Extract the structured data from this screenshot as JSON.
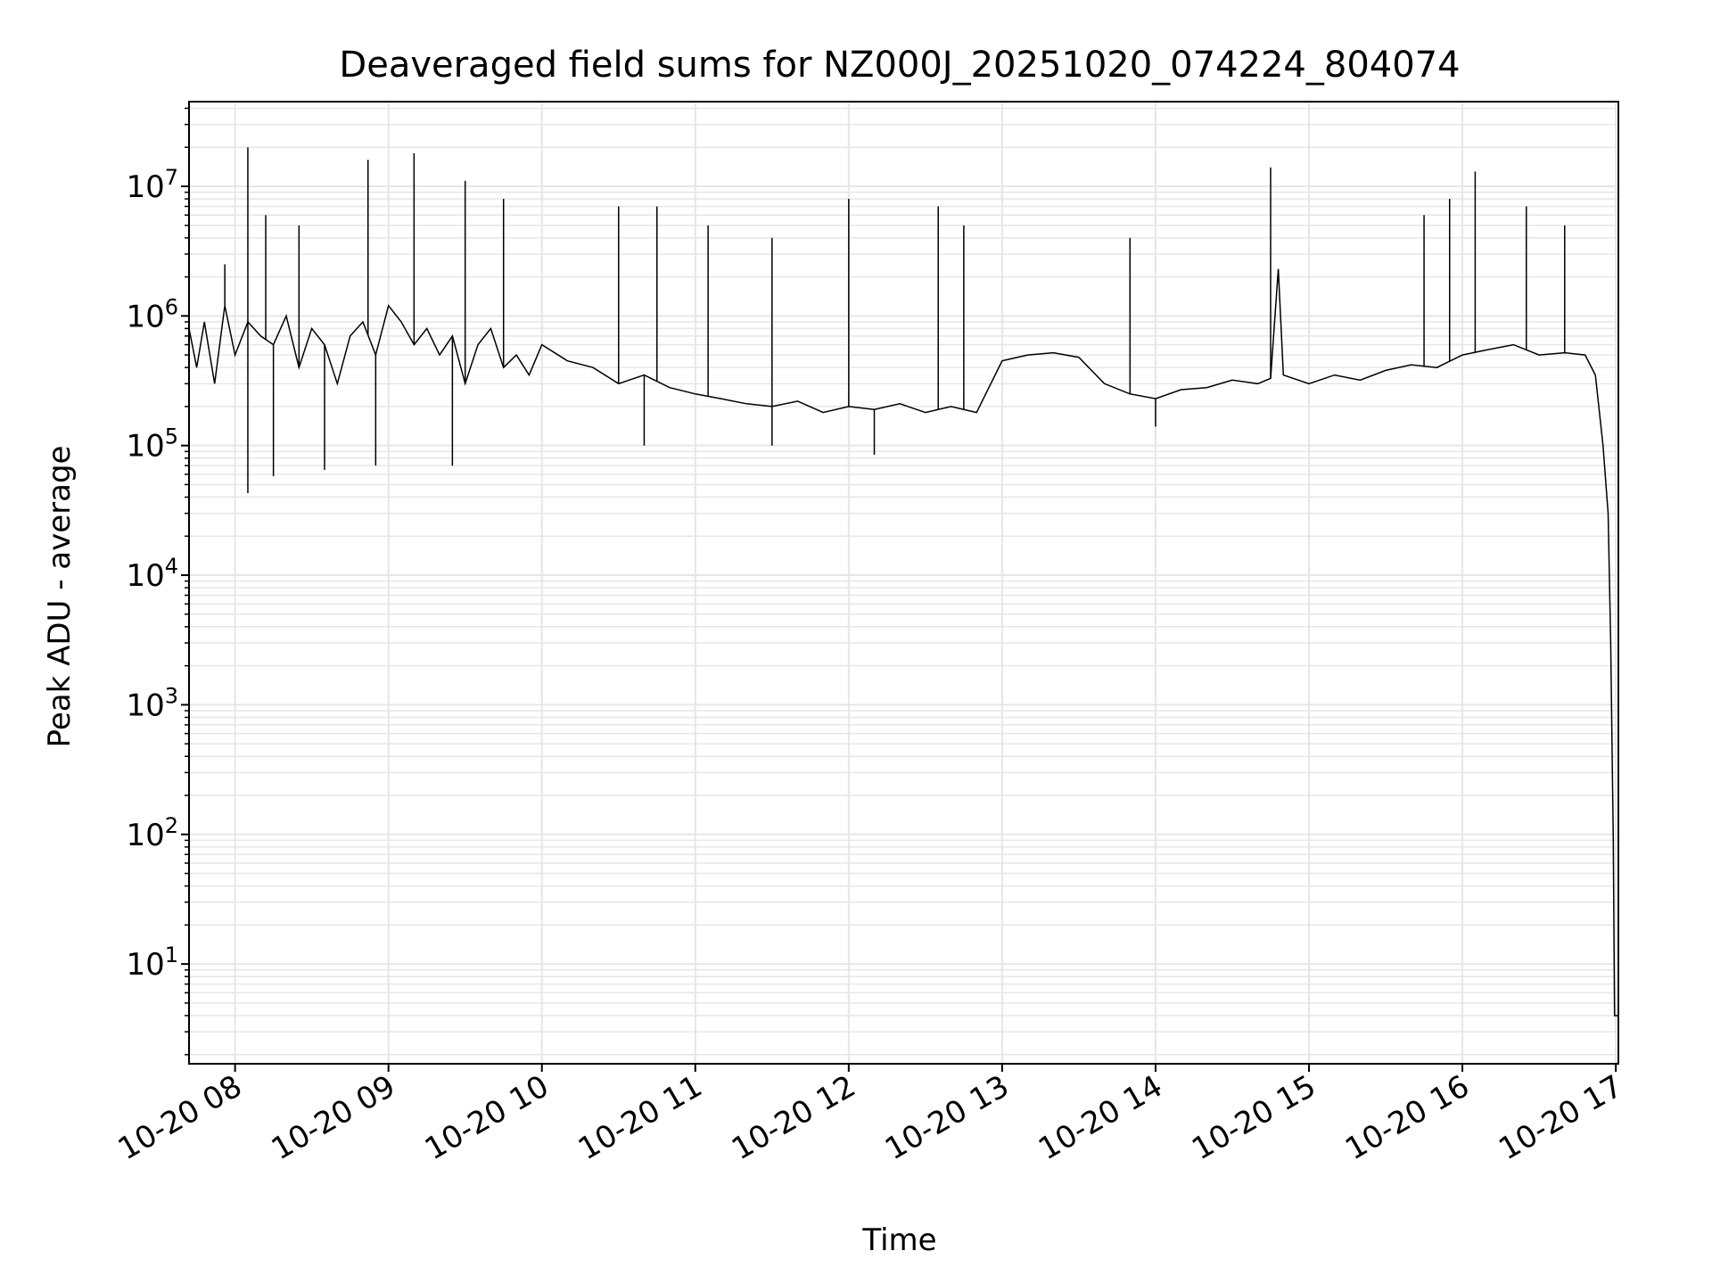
{
  "chart_data": {
    "type": "line",
    "title": "Deaveraged field sums for NZ000J_20251020_074224_804074",
    "xlabel": "Time",
    "ylabel": "Peak ADU - average",
    "y_scale": "log",
    "ylim": [
      1.7,
      45000000
    ],
    "xlim": [
      "2025-10-20 07:42",
      "2025-10-20 17:01"
    ],
    "grid": true,
    "legend": "none",
    "line_color": "#000000",
    "grid_color": "#e6e6e6",
    "x_ticks": [
      {
        "value": "2025-10-20 08:00",
        "label": "10-20 08"
      },
      {
        "value": "2025-10-20 09:00",
        "label": "10-20 09"
      },
      {
        "value": "2025-10-20 10:00",
        "label": "10-20 10"
      },
      {
        "value": "2025-10-20 11:00",
        "label": "10-20 11"
      },
      {
        "value": "2025-10-20 12:00",
        "label": "10-20 12"
      },
      {
        "value": "2025-10-20 13:00",
        "label": "10-20 13"
      },
      {
        "value": "2025-10-20 14:00",
        "label": "10-20 14"
      },
      {
        "value": "2025-10-20 15:00",
        "label": "10-20 15"
      },
      {
        "value": "2025-10-20 16:00",
        "label": "10-20 16"
      },
      {
        "value": "2025-10-20 17:00",
        "label": "10-20 17"
      }
    ],
    "y_ticks": [
      {
        "value": 10,
        "base": "10",
        "exp": "1"
      },
      {
        "value": 100,
        "base": "10",
        "exp": "2"
      },
      {
        "value": 1000,
        "base": "10",
        "exp": "3"
      },
      {
        "value": 10000,
        "base": "10",
        "exp": "4"
      },
      {
        "value": 100000,
        "base": "10",
        "exp": "5"
      },
      {
        "value": 1000000,
        "base": "10",
        "exp": "6"
      },
      {
        "value": 10000000,
        "base": "10",
        "exp": "7"
      }
    ],
    "series": [
      {
        "x": [
          "2025-10-20 07:42",
          "2025-10-20 07:45",
          "2025-10-20 07:48",
          "2025-10-20 07:52",
          "2025-10-20 07:56",
          "2025-10-20 08:00",
          "2025-10-20 08:05",
          "2025-10-20 08:10",
          "2025-10-20 08:15",
          "2025-10-20 08:20",
          "2025-10-20 08:25",
          "2025-10-20 08:30",
          "2025-10-20 08:35",
          "2025-10-20 08:40",
          "2025-10-20 08:45",
          "2025-10-20 08:50",
          "2025-10-20 08:55",
          "2025-10-20 09:00",
          "2025-10-20 09:05",
          "2025-10-20 09:10",
          "2025-10-20 09:15",
          "2025-10-20 09:20",
          "2025-10-20 09:25",
          "2025-10-20 09:30",
          "2025-10-20 09:35",
          "2025-10-20 09:40",
          "2025-10-20 09:45",
          "2025-10-20 09:50",
          "2025-10-20 09:55",
          "2025-10-20 10:00",
          "2025-10-20 10:10",
          "2025-10-20 10:20",
          "2025-10-20 10:30",
          "2025-10-20 10:40",
          "2025-10-20 10:50",
          "2025-10-20 11:00",
          "2025-10-20 11:10",
          "2025-10-20 11:20",
          "2025-10-20 11:30",
          "2025-10-20 11:40",
          "2025-10-20 11:50",
          "2025-10-20 12:00",
          "2025-10-20 12:10",
          "2025-10-20 12:20",
          "2025-10-20 12:30",
          "2025-10-20 12:40",
          "2025-10-20 12:50",
          "2025-10-20 13:00",
          "2025-10-20 13:10",
          "2025-10-20 13:20",
          "2025-10-20 13:30",
          "2025-10-20 13:40",
          "2025-10-20 13:50",
          "2025-10-20 14:00",
          "2025-10-20 14:10",
          "2025-10-20 14:20",
          "2025-10-20 14:30",
          "2025-10-20 14:40",
          "2025-10-20 14:45",
          "2025-10-20 14:48",
          "2025-10-20 14:50",
          "2025-10-20 15:00",
          "2025-10-20 15:10",
          "2025-10-20 15:20",
          "2025-10-20 15:30",
          "2025-10-20 15:40",
          "2025-10-20 15:50",
          "2025-10-20 16:00",
          "2025-10-20 16:10",
          "2025-10-20 16:20",
          "2025-10-20 16:30",
          "2025-10-20 16:40",
          "2025-10-20 16:48",
          "2025-10-20 16:52",
          "2025-10-20 16:55",
          "2025-10-20 16:57",
          "2025-10-20 16:58",
          "2025-10-20 16:59",
          "2025-10-20 16:59:30",
          "2025-10-20 17:00",
          "2025-10-20 17:00:30",
          "2025-10-20 17:01"
        ],
        "y": [
          800000,
          400000,
          900000,
          300000,
          1200000,
          500000,
          900000,
          700000,
          600000,
          1000000,
          400000,
          800000,
          600000,
          300000,
          700000,
          900000,
          500000,
          1200000,
          900000,
          600000,
          800000,
          500000,
          700000,
          300000,
          600000,
          800000,
          400000,
          500000,
          350000,
          600000,
          450000,
          400000,
          300000,
          350000,
          280000,
          250000,
          230000,
          210000,
          200000,
          220000,
          180000,
          200000,
          190000,
          210000,
          180000,
          200000,
          180000,
          450000,
          500000,
          520000,
          480000,
          300000,
          250000,
          230000,
          270000,
          280000,
          320000,
          300000,
          330000,
          2300000,
          350000,
          300000,
          350000,
          320000,
          380000,
          420000,
          400000,
          500000,
          550000,
          600000,
          500000,
          520000,
          500000,
          350000,
          100000,
          30000,
          3000,
          90,
          4,
          4,
          4,
          4
        ]
      }
    ],
    "spikes_top": [
      {
        "x": "2025-10-20 07:56",
        "y": 2500000
      },
      {
        "x": "2025-10-20 08:05",
        "y": 20000000
      },
      {
        "x": "2025-10-20 08:12",
        "y": 6000000
      },
      {
        "x": "2025-10-20 08:25",
        "y": 5000000
      },
      {
        "x": "2025-10-20 08:52",
        "y": 16000000
      },
      {
        "x": "2025-10-20 09:10",
        "y": 18000000
      },
      {
        "x": "2025-10-20 09:30",
        "y": 11000000
      },
      {
        "x": "2025-10-20 09:45",
        "y": 8000000
      },
      {
        "x": "2025-10-20 10:30",
        "y": 7000000
      },
      {
        "x": "2025-10-20 10:45",
        "y": 7000000
      },
      {
        "x": "2025-10-20 11:05",
        "y": 5000000
      },
      {
        "x": "2025-10-20 11:30",
        "y": 4000000
      },
      {
        "x": "2025-10-20 12:00",
        "y": 8000000
      },
      {
        "x": "2025-10-20 12:35",
        "y": 7000000
      },
      {
        "x": "2025-10-20 12:45",
        "y": 5000000
      },
      {
        "x": "2025-10-20 13:50",
        "y": 4000000
      },
      {
        "x": "2025-10-20 14:45",
        "y": 14000000
      },
      {
        "x": "2025-10-20 15:45",
        "y": 6000000
      },
      {
        "x": "2025-10-20 15:55",
        "y": 8000000
      },
      {
        "x": "2025-10-20 16:05",
        "y": 13000000
      },
      {
        "x": "2025-10-20 16:25",
        "y": 7000000
      },
      {
        "x": "2025-10-20 16:40",
        "y": 5000000
      }
    ],
    "spikes_bottom": [
      {
        "x": "2025-10-20 08:05",
        "y": 43000
      },
      {
        "x": "2025-10-20 08:15",
        "y": 58000
      },
      {
        "x": "2025-10-20 08:35",
        "y": 65000
      },
      {
        "x": "2025-10-20 08:55",
        "y": 70000
      },
      {
        "x": "2025-10-20 09:25",
        "y": 70000
      },
      {
        "x": "2025-10-20 10:40",
        "y": 100000
      },
      {
        "x": "2025-10-20 11:30",
        "y": 100000
      },
      {
        "x": "2025-10-20 12:10",
        "y": 85000
      },
      {
        "x": "2025-10-20 14:00",
        "y": 140000
      }
    ]
  }
}
